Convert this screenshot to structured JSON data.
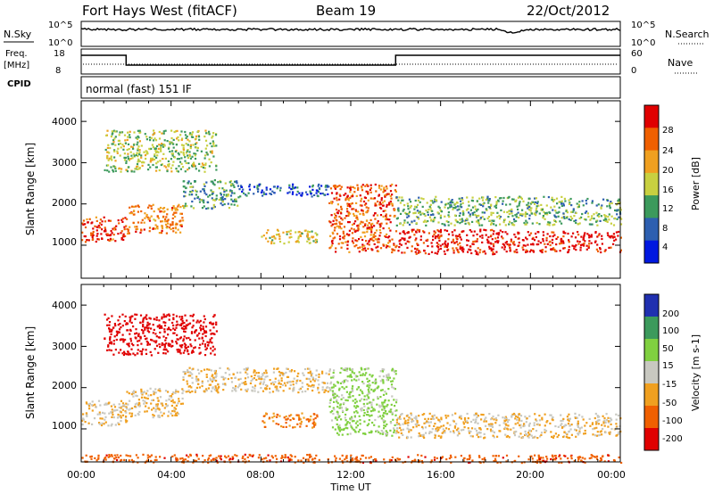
{
  "header": {
    "title": "Fort Hays West (fitACF)",
    "beam": "Beam 19",
    "date": "22/Oct/2012"
  },
  "top_panels": {
    "nsky_label": "N.Sky",
    "nsky_ticks": [
      "10^5",
      "10^0"
    ],
    "nsearch_label": "N.Search",
    "nsearch_ticks": [
      "10^5",
      "10^0"
    ],
    "freq_label_1": "Freq.",
    "freq_label_2": "[MHz]",
    "freq_ticks": [
      "18",
      "8"
    ],
    "nave_label": "Nave",
    "nave_ticks": [
      "60",
      "0"
    ],
    "cpid_label": "CPID",
    "cpid_text": "normal (fast) 151 IF",
    "freq_steps": [
      {
        "from_hour": 0,
        "to_hour": 2,
        "level": "high"
      },
      {
        "from_hour": 2,
        "to_hour": 14,
        "level": "low"
      },
      {
        "from_hour": 14,
        "to_hour": 24,
        "level": "high"
      }
    ]
  },
  "axes": {
    "ylabel": "Slant Range [km]",
    "xlabel": "Time UT",
    "yticks": [
      "4000",
      "3000",
      "2000",
      "1000"
    ],
    "xticks": [
      "00:00",
      "04:00",
      "08:00",
      "12:00",
      "16:00",
      "20:00",
      "00:00"
    ]
  },
  "colorbars": {
    "power": {
      "label": "Power [dB]",
      "ticks": [
        "28",
        "24",
        "20",
        "16",
        "12",
        "8",
        "4"
      ],
      "colors": [
        "#e00000",
        "#f06000",
        "#f0a020",
        "#c8d040",
        "#3c9a5c",
        "#2d5fb0",
        "#0018e0"
      ]
    },
    "velocity": {
      "label": "Velocity [m s-1]",
      "ticks": [
        "200",
        "100",
        "50",
        "15",
        "-15",
        "-50",
        "-100",
        "-200"
      ],
      "colors": [
        "#2030b0",
        "#3c9a5c",
        "#80d040",
        "#c8c8c0",
        "#f0a020",
        "#f06000",
        "#e00000"
      ]
    }
  },
  "chart_data": [
    {
      "type": "heatmap",
      "title": "Power",
      "xlabel": "Time UT",
      "ylabel": "Slant Range [km]",
      "xlim": [
        0,
        24
      ],
      "ylim": [
        200,
        4500
      ],
      "colorbar_label": "Power [dB]",
      "colorbar_range": [
        0,
        30
      ],
      "echo_bands": [
        {
          "start_hour": 0.0,
          "end_hour": 2.0,
          "range_km": [
            1100,
            1700
          ],
          "power_db": 26
        },
        {
          "start_hour": 2.0,
          "end_hour": 4.5,
          "range_km": [
            1300,
            2000
          ],
          "power_db": 22
        },
        {
          "start_hour": 4.5,
          "end_hour": 7.0,
          "range_km": [
            1900,
            2600
          ],
          "power_db": 10
        },
        {
          "start_hour": 7.0,
          "end_hour": 11.0,
          "range_km": [
            2200,
            2500
          ],
          "power_db": 6
        },
        {
          "start_hour": 8.0,
          "end_hour": 10.5,
          "range_km": [
            1050,
            1400
          ],
          "power_db": 16
        },
        {
          "start_hour": 11.0,
          "end_hour": 14.0,
          "range_km": [
            850,
            2500
          ],
          "power_db": 24
        },
        {
          "start_hour": 14.0,
          "end_hour": 18.8,
          "range_km": [
            800,
            1400
          ],
          "power_db": 28
        },
        {
          "start_hour": 18.8,
          "end_hour": 24.0,
          "range_km": [
            850,
            1350
          ],
          "power_db": 28
        },
        {
          "start_hour": 14.0,
          "end_hour": 24.0,
          "range_km": [
            1500,
            2200
          ],
          "power_db": 12
        },
        {
          "start_hour": 1.0,
          "end_hour": 6.0,
          "range_km": [
            2800,
            3800
          ],
          "power_db": 14
        }
      ]
    },
    {
      "type": "heatmap",
      "title": "Velocity",
      "xlabel": "Time UT",
      "ylabel": "Slant Range [km]",
      "xlim": [
        0,
        24
      ],
      "ylim": [
        200,
        4500
      ],
      "colorbar_label": "Velocity [m s-1]",
      "colorbar_range": [
        -200,
        200
      ],
      "echo_bands": [
        {
          "start_hour": 0.0,
          "end_hour": 2.0,
          "range_km": [
            1100,
            1700
          ],
          "velocity_ms": 0
        },
        {
          "start_hour": 2.0,
          "end_hour": 4.5,
          "range_km": [
            1300,
            2000
          ],
          "velocity_ms": 0
        },
        {
          "start_hour": 4.5,
          "end_hour": 11.0,
          "range_km": [
            1900,
            2500
          ],
          "velocity_ms": 0
        },
        {
          "start_hour": 8.0,
          "end_hour": 10.5,
          "range_km": [
            1050,
            1400
          ],
          "velocity_ms": -40
        },
        {
          "start_hour": 11.0,
          "end_hour": 14.0,
          "range_km": [
            850,
            2500
          ],
          "velocity_ms": 40
        },
        {
          "start_hour": 14.0,
          "end_hour": 24.0,
          "range_km": [
            800,
            1400
          ],
          "velocity_ms": 0
        },
        {
          "start_hour": 1.0,
          "end_hour": 6.0,
          "range_km": [
            2800,
            3800
          ],
          "velocity_ms": -180
        },
        {
          "start_hour": 0.0,
          "end_hour": 24.0,
          "range_km": [
            200,
            400
          ],
          "velocity_ms": -60
        }
      ]
    }
  ]
}
